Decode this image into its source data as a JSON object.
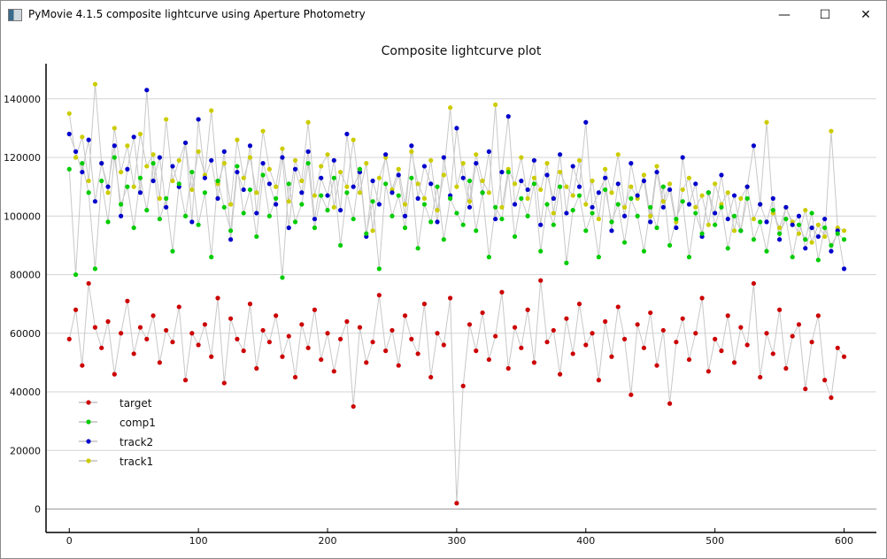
{
  "window": {
    "title": "PyMovie 4.1.5 composite lightcurve using Aperture Photometry",
    "minimize": "—",
    "maximize": "☐",
    "close": "✕"
  },
  "chart_data": {
    "type": "line",
    "title": "Composite lightcurve plot",
    "xlabel": "",
    "ylabel": "",
    "xlim": [
      -18,
      625
    ],
    "ylim": [
      -8000,
      152000
    ],
    "xticks": [
      0,
      100,
      200,
      300,
      400,
      500,
      600
    ],
    "yticks": [
      0,
      20000,
      40000,
      60000,
      80000,
      100000,
      120000,
      140000
    ],
    "grid": "horizontal",
    "legend": "bottom-left",
    "x_start": 0,
    "x_step": 5,
    "series": [
      {
        "name": "target",
        "color": "#cc0000",
        "values": [
          58000,
          68000,
          49000,
          77000,
          62000,
          55000,
          64000,
          46000,
          60000,
          71000,
          53000,
          62000,
          58000,
          66000,
          50000,
          61000,
          57000,
          69000,
          44000,
          60000,
          56000,
          63000,
          52000,
          72000,
          43000,
          65000,
          58000,
          54000,
          70000,
          48000,
          61000,
          57000,
          66000,
          52000,
          59000,
          45000,
          63000,
          55000,
          68000,
          51000,
          60000,
          47000,
          58000,
          64000,
          35000,
          62000,
          50000,
          57000,
          73000,
          54000,
          61000,
          49000,
          66000,
          58000,
          53000,
          70000,
          45000,
          60000,
          56000,
          72000,
          2000,
          42000,
          63000,
          54000,
          67000,
          51000,
          59000,
          74000,
          48000,
          62000,
          55000,
          68000,
          50000,
          78000,
          57000,
          61000,
          46000,
          65000,
          53000,
          70000,
          56000,
          60000,
          44000,
          64000,
          52000,
          69000,
          58000,
          39000,
          63000,
          55000,
          67000,
          49000,
          61000,
          36000,
          57000,
          65000,
          51000,
          60000,
          72000,
          47000,
          58000,
          54000,
          66000,
          50000,
          62000,
          56000,
          77000,
          45000,
          60000,
          53000,
          68000,
          48000,
          59000,
          63000,
          41000,
          57000,
          66000,
          44000,
          38000,
          55000,
          52000
        ]
      },
      {
        "name": "comp1",
        "color": "#00cc00",
        "values": [
          116000,
          80000,
          118000,
          108000,
          82000,
          112000,
          98000,
          120000,
          104000,
          110000,
          96000,
          113000,
          102000,
          118000,
          99000,
          106000,
          88000,
          111000,
          100000,
          115000,
          97000,
          108000,
          86000,
          112000,
          103000,
          95000,
          117000,
          101000,
          109000,
          93000,
          114000,
          100000,
          106000,
          79000,
          111000,
          98000,
          104000,
          118000,
          96000,
          107000,
          102000,
          113000,
          90000,
          108000,
          99000,
          116000,
          94000,
          105000,
          82000,
          111000,
          100000,
          107000,
          96000,
          113000,
          89000,
          104000,
          98000,
          110000,
          92000,
          106000,
          101000,
          97000,
          112000,
          95000,
          108000,
          86000,
          103000,
          99000,
          115000,
          93000,
          106000,
          100000,
          111000,
          88000,
          104000,
          97000,
          110000,
          84000,
          102000,
          107000,
          95000,
          101000,
          86000,
          109000,
          98000,
          104000,
          91000,
          106000,
          100000,
          88000,
          103000,
          96000,
          110000,
          90000,
          99000,
          105000,
          86000,
          101000,
          94000,
          108000,
          97000,
          103000,
          89000,
          100000,
          95000,
          106000,
          92000,
          98000,
          88000,
          102000,
          94000,
          99000,
          86000,
          97000,
          92000,
          101000,
          85000,
          96000,
          90000,
          94000,
          92000
        ]
      },
      {
        "name": "track2",
        "color": "#0000cc",
        "values": [
          128000,
          122000,
          115000,
          126000,
          105000,
          118000,
          110000,
          124000,
          100000,
          116000,
          127000,
          108000,
          143000,
          112000,
          120000,
          103000,
          117000,
          110000,
          125000,
          98000,
          133000,
          113000,
          119000,
          106000,
          122000,
          92000,
          115000,
          109000,
          124000,
          101000,
          118000,
          111000,
          104000,
          120000,
          96000,
          116000,
          108000,
          122000,
          99000,
          113000,
          107000,
          119000,
          102000,
          128000,
          110000,
          115000,
          93000,
          112000,
          104000,
          121000,
          108000,
          114000,
          100000,
          124000,
          106000,
          117000,
          111000,
          98000,
          120000,
          107000,
          130000,
          113000,
          103000,
          118000,
          108000,
          122000,
          99000,
          115000,
          134000,
          104000,
          112000,
          109000,
          119000,
          97000,
          114000,
          106000,
          121000,
          101000,
          117000,
          110000,
          132000,
          103000,
          108000,
          113000,
          95000,
          111000,
          100000,
          118000,
          107000,
          112000,
          98000,
          115000,
          103000,
          109000,
          96000,
          120000,
          104000,
          111000,
          93000,
          108000,
          101000,
          114000,
          99000,
          107000,
          95000,
          110000,
          124000,
          104000,
          98000,
          106000,
          92000,
          103000,
          97000,
          100000,
          89000,
          96000,
          93000,
          99000,
          88000,
          95000,
          82000
        ]
      },
      {
        "name": "track1",
        "color": "#cccc00",
        "values": [
          135000,
          120000,
          127000,
          112000,
          145000,
          118000,
          108000,
          130000,
          115000,
          124000,
          110000,
          128000,
          117000,
          121000,
          106000,
          133000,
          112000,
          119000,
          125000,
          109000,
          122000,
          114000,
          136000,
          111000,
          118000,
          104000,
          126000,
          113000,
          120000,
          108000,
          129000,
          116000,
          110000,
          123000,
          105000,
          119000,
          112000,
          132000,
          107000,
          117000,
          121000,
          103000,
          115000,
          110000,
          126000,
          108000,
          118000,
          95000,
          113000,
          120000,
          109000,
          116000,
          104000,
          122000,
          111000,
          106000,
          119000,
          102000,
          114000,
          137000,
          110000,
          118000,
          105000,
          121000,
          112000,
          108000,
          138000,
          103000,
          116000,
          111000,
          120000,
          106000,
          113000,
          109000,
          118000,
          101000,
          115000,
          110000,
          107000,
          119000,
          104000,
          112000,
          99000,
          116000,
          108000,
          121000,
          103000,
          110000,
          106000,
          114000,
          100000,
          117000,
          105000,
          111000,
          98000,
          109000,
          113000,
          103000,
          107000,
          97000,
          111000,
          104000,
          108000,
          95000,
          106000,
          110000,
          99000,
          104000,
          132000,
          101000,
          96000,
          103000,
          98000,
          94000,
          102000,
          91000,
          97000,
          93000,
          129000,
          96000,
          95000
        ]
      }
    ]
  }
}
